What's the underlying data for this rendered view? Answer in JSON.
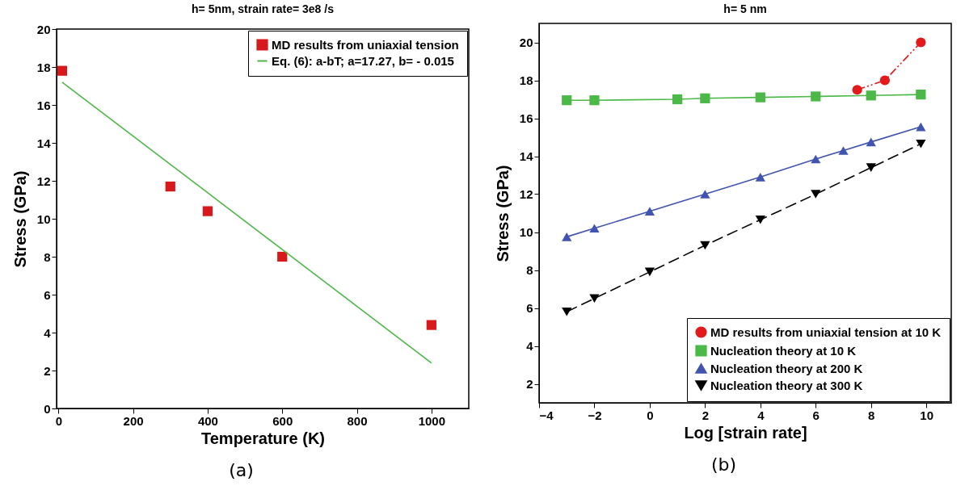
{
  "chart_data": [
    {
      "type": "scatter",
      "title": "h= 5nm, strain rate= 3e8 /s",
      "xlabel": "Temperature (K)",
      "ylabel": "Stress (GPa)",
      "xlim": [
        -5,
        1100
      ],
      "ylim": [
        0,
        20
      ],
      "xticks": [
        0,
        200,
        400,
        600,
        800,
        1000
      ],
      "yticks": [
        0,
        2,
        4,
        6,
        8,
        10,
        12,
        14,
        16,
        18,
        20
      ],
      "legend": "top right",
      "annotations": [
        "(a)"
      ],
      "series": [
        {
          "name": "MD results from uniaxial tension",
          "color": "#d7191c",
          "marker": "square",
          "x": [
            10,
            300,
            400,
            600,
            1000
          ],
          "values": [
            17.8,
            11.7,
            10.4,
            8.0,
            4.4
          ]
        },
        {
          "name": "Eq. (6): a-bT; a=17.27, b= - 0.015",
          "type": "line",
          "color": "#4db848",
          "marker": "none",
          "line_style": "solid",
          "x": [
            10,
            1000
          ],
          "values": [
            17.2,
            2.4
          ]
        }
      ]
    },
    {
      "type": "line",
      "title": "h= 5 nm",
      "xlabel": "Log [strain rate]",
      "ylabel": "Stress (GPa)",
      "xlim": [
        -4,
        10.9
      ],
      "ylim": [
        1,
        21
      ],
      "xticks": [
        -4,
        -2,
        0,
        2,
        4,
        6,
        8,
        10
      ],
      "yticks": [
        2,
        4,
        6,
        8,
        10,
        12,
        14,
        16,
        18,
        20
      ],
      "legend": "bottom right",
      "annotations": [
        "(b)"
      ],
      "series": [
        {
          "name": "MD results from uniaxial tension at 10 K",
          "color": "#e31a1c",
          "marker": "circle",
          "line_style": "dashdot",
          "x": [
            7.5,
            8.5,
            9.8
          ],
          "values": [
            17.5,
            18.0,
            20.0
          ]
        },
        {
          "name": "Nucleation theory at 10 K",
          "color": "#4cb848",
          "marker": "square",
          "line_style": "solid",
          "x": [
            -3,
            -2,
            1,
            2,
            4,
            6,
            8,
            9.8
          ],
          "values": [
            16.95,
            16.95,
            17.0,
            17.05,
            17.1,
            17.15,
            17.2,
            17.25
          ]
        },
        {
          "name": "Nucleation theory at 200 K",
          "color": "#4154b0",
          "marker": "triangle",
          "line_style": "solid",
          "x": [
            -3,
            -2,
            0,
            2,
            4,
            6,
            7,
            8,
            9.8
          ],
          "values": [
            9.75,
            10.2,
            11.1,
            12.0,
            12.9,
            13.85,
            14.3,
            14.75,
            15.55
          ]
        },
        {
          "name": "Nucleation theory at 300 K",
          "color": "#000000",
          "marker": "triangle-down",
          "line_style": "dashed",
          "x": [
            -3,
            -2,
            0,
            2,
            4,
            6,
            8,
            9.8
          ],
          "values": [
            5.8,
            6.5,
            7.9,
            9.3,
            10.65,
            12.0,
            13.4,
            14.65
          ]
        }
      ]
    }
  ]
}
